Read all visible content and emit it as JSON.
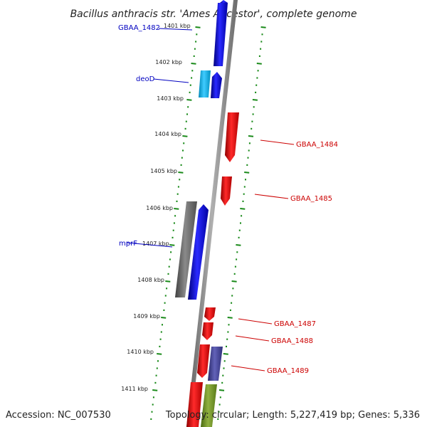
{
  "title": "Bacillus anthracis str. 'Ames Ancestor', complete genome",
  "footer": {
    "accession": "Accession: NC_007530",
    "stats": "Topology: circular; Length: 5,227,419 bp; Genes: 5,336"
  },
  "ticks": [
    "1401 kbp",
    "1402 kbp",
    "1403 kbp",
    "1404 kbp",
    "1405 kbp",
    "1406 kbp",
    "1407 kbp",
    "1408 kbp",
    "1409 kbp",
    "1410 kbp",
    "1411 kbp"
  ],
  "gene_labels": {
    "gbaa_1482": "GBAA_1482",
    "deod": "deoD",
    "mprf": "mprF",
    "gbaa_1484": "GBAA_1484",
    "gbaa_1485": "GBAA_1485",
    "gbaa_1487": "GBAA_1487",
    "gbaa_1488": "GBAA_1488",
    "gbaa_1489": "GBAA_1489"
  },
  "colors": {
    "forward_cds": "#1010e0",
    "reverse_cds": "#e01010",
    "cds_light_blue": "#22b8e8",
    "cds_gray": "#707070",
    "cds_purple": "#4a4a9a",
    "cds_olive": "#7a9a30",
    "backbone": "#808080",
    "dotted_ring": "#1a8a1a",
    "label_blue": "#0000c0",
    "label_red": "#cc0000"
  }
}
